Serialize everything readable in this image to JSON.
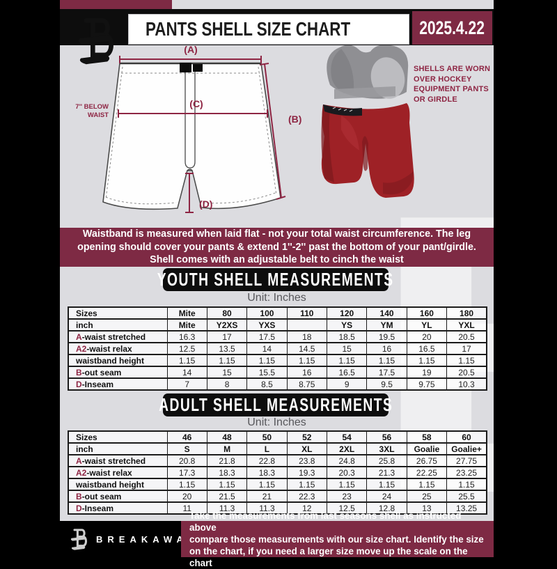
{
  "header": {
    "title": "PANTS SHELL SIZE CHART",
    "date": "2025.4.22"
  },
  "diagram": {
    "labels": {
      "a": "(A)",
      "b": "(B)",
      "c": "(C)",
      "d": "(D)"
    },
    "waist_note": [
      "7'' BELOW",
      "WAIST"
    ],
    "side_note": [
      "SHELLS ARE WORN",
      "OVER HOCKEY",
      "EQUIPMENT PANTS",
      "OR GIRDLE"
    ]
  },
  "banner": {
    "lines": [
      "Waistband is measured when laid flat - not your total waist circumference. The leg",
      "opening should cover your pants & extend 1''-2'' past the bottom of your pant/girdle.",
      "Shell comes with an adjustable belt to cinch the waist"
    ]
  },
  "youth": {
    "heading": "YOUTH SHELL MEASUREMENTS",
    "unit": "Unit: Inches",
    "table": {
      "header_rows": [
        {
          "label": "Sizes",
          "values": [
            "Mite",
            "80",
            "100",
            "110",
            "120",
            "140",
            "160",
            "180"
          ]
        },
        {
          "label": "inch",
          "values": [
            "Mite",
            "Y2XS",
            "YXS",
            "",
            "YS",
            "YM",
            "YL",
            "YXL"
          ]
        }
      ],
      "rows": [
        {
          "prefix": "A",
          "rest": "-waist stretched",
          "values": [
            "16.3",
            "17",
            "17.5",
            "18",
            "18.5",
            "19.5",
            "20",
            "20.5"
          ]
        },
        {
          "prefix": "A2",
          "rest": "-waist relax",
          "values": [
            "12.5",
            "13.5",
            "14",
            "14.5",
            "15",
            "16",
            "16.5",
            "17"
          ]
        },
        {
          "prefix": "",
          "rest": "waistband height",
          "values": [
            "1.15",
            "1.15",
            "1.15",
            "1.15",
            "1.15",
            "1.15",
            "1.15",
            "1.15"
          ]
        },
        {
          "prefix": "B",
          "rest": "-out seam",
          "values": [
            "14",
            "15",
            "15.5",
            "16",
            "16.5",
            "17.5",
            "19",
            "20.5"
          ]
        },
        {
          "prefix": "D",
          "rest": "-Inseam",
          "values": [
            "7",
            "8",
            "8.5",
            "8.75",
            "9",
            "9.5",
            "9.75",
            "10.3"
          ]
        }
      ]
    }
  },
  "adult": {
    "heading": "ADULT SHELL MEASUREMENTS",
    "unit": "Unit: Inches",
    "table": {
      "header_rows": [
        {
          "label": "Sizes",
          "values": [
            "46",
            "48",
            "50",
            "52",
            "54",
            "56",
            "58",
            "60"
          ]
        },
        {
          "label": "inch",
          "values": [
            "S",
            "M",
            "L",
            "XL",
            "2XL",
            "3XL",
            "Goalie",
            "Goalie+"
          ]
        }
      ],
      "rows": [
        {
          "prefix": "A",
          "rest": "-waist stretched",
          "values": [
            "20.8",
            "21.8",
            "22.8",
            "23.8",
            "24.8",
            "25.8",
            "26.75",
            "27.75"
          ]
        },
        {
          "prefix": "A2",
          "rest": "-waist relax",
          "values": [
            "17.3",
            "18.3",
            "18.3",
            "19.3",
            "20.3",
            "21.3",
            "22.25",
            "23.25"
          ]
        },
        {
          "prefix": "",
          "rest": "waistband height",
          "values": [
            "1.15",
            "1.15",
            "1.15",
            "1.15",
            "1.15",
            "1.15",
            "1.15",
            "1.15"
          ]
        },
        {
          "prefix": "B",
          "rest": "-out seam",
          "values": [
            "20",
            "21.5",
            "21",
            "22.3",
            "23",
            "24",
            "25",
            "25.5"
          ]
        },
        {
          "prefix": "D",
          "rest": "-Inseam",
          "values": [
            "11",
            "11.3",
            "11.3",
            "12",
            "12.5",
            "12.8",
            "13",
            "13.25"
          ]
        }
      ]
    }
  },
  "footer": {
    "brand": "BREAKAWAY",
    "lines": [
      "Take the measurements from last seasons shell as instructed above",
      "compare those measurements  with our size chart. Identify the size",
      "on the chart, if you need a larger size move up the scale on the chart"
    ]
  },
  "watermark": "B",
  "colors": {
    "maroon": "#7e2a44",
    "accent": "#8e2543",
    "page-bg": "#dcdce0",
    "ink": "#0d0d0d",
    "shell-red": "#9e2126"
  }
}
